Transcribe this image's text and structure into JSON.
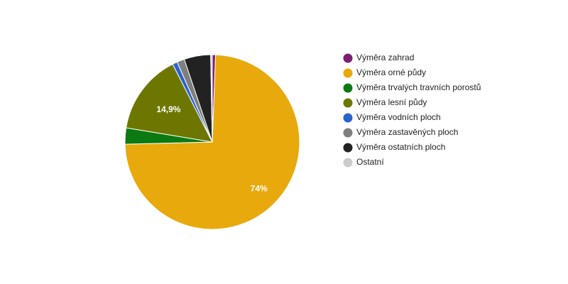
{
  "chart_data": {
    "type": "pie",
    "categories": [
      "Výměra zahrad",
      "Výměra orné půdy",
      "Výměra trvalých travních porostů",
      "Výměra lesní půdy",
      "Výměra vodních ploch",
      "Výměra zastavěných ploch",
      "Výměra ostatních ploch",
      "Ostatní"
    ],
    "values": [
      0.6,
      74,
      3,
      14.9,
      0.9,
      1.4,
      4.9,
      0.3
    ],
    "value_labels": [
      null,
      "74%",
      null,
      "14,9%",
      null,
      null,
      null,
      null
    ],
    "colors": [
      "#7b1f74",
      "#e8a90c",
      "#0b7a13",
      "#6d7700",
      "#2c62cc",
      "#7f7f7f",
      "#222222",
      "#cccccc"
    ],
    "legend": "right"
  }
}
